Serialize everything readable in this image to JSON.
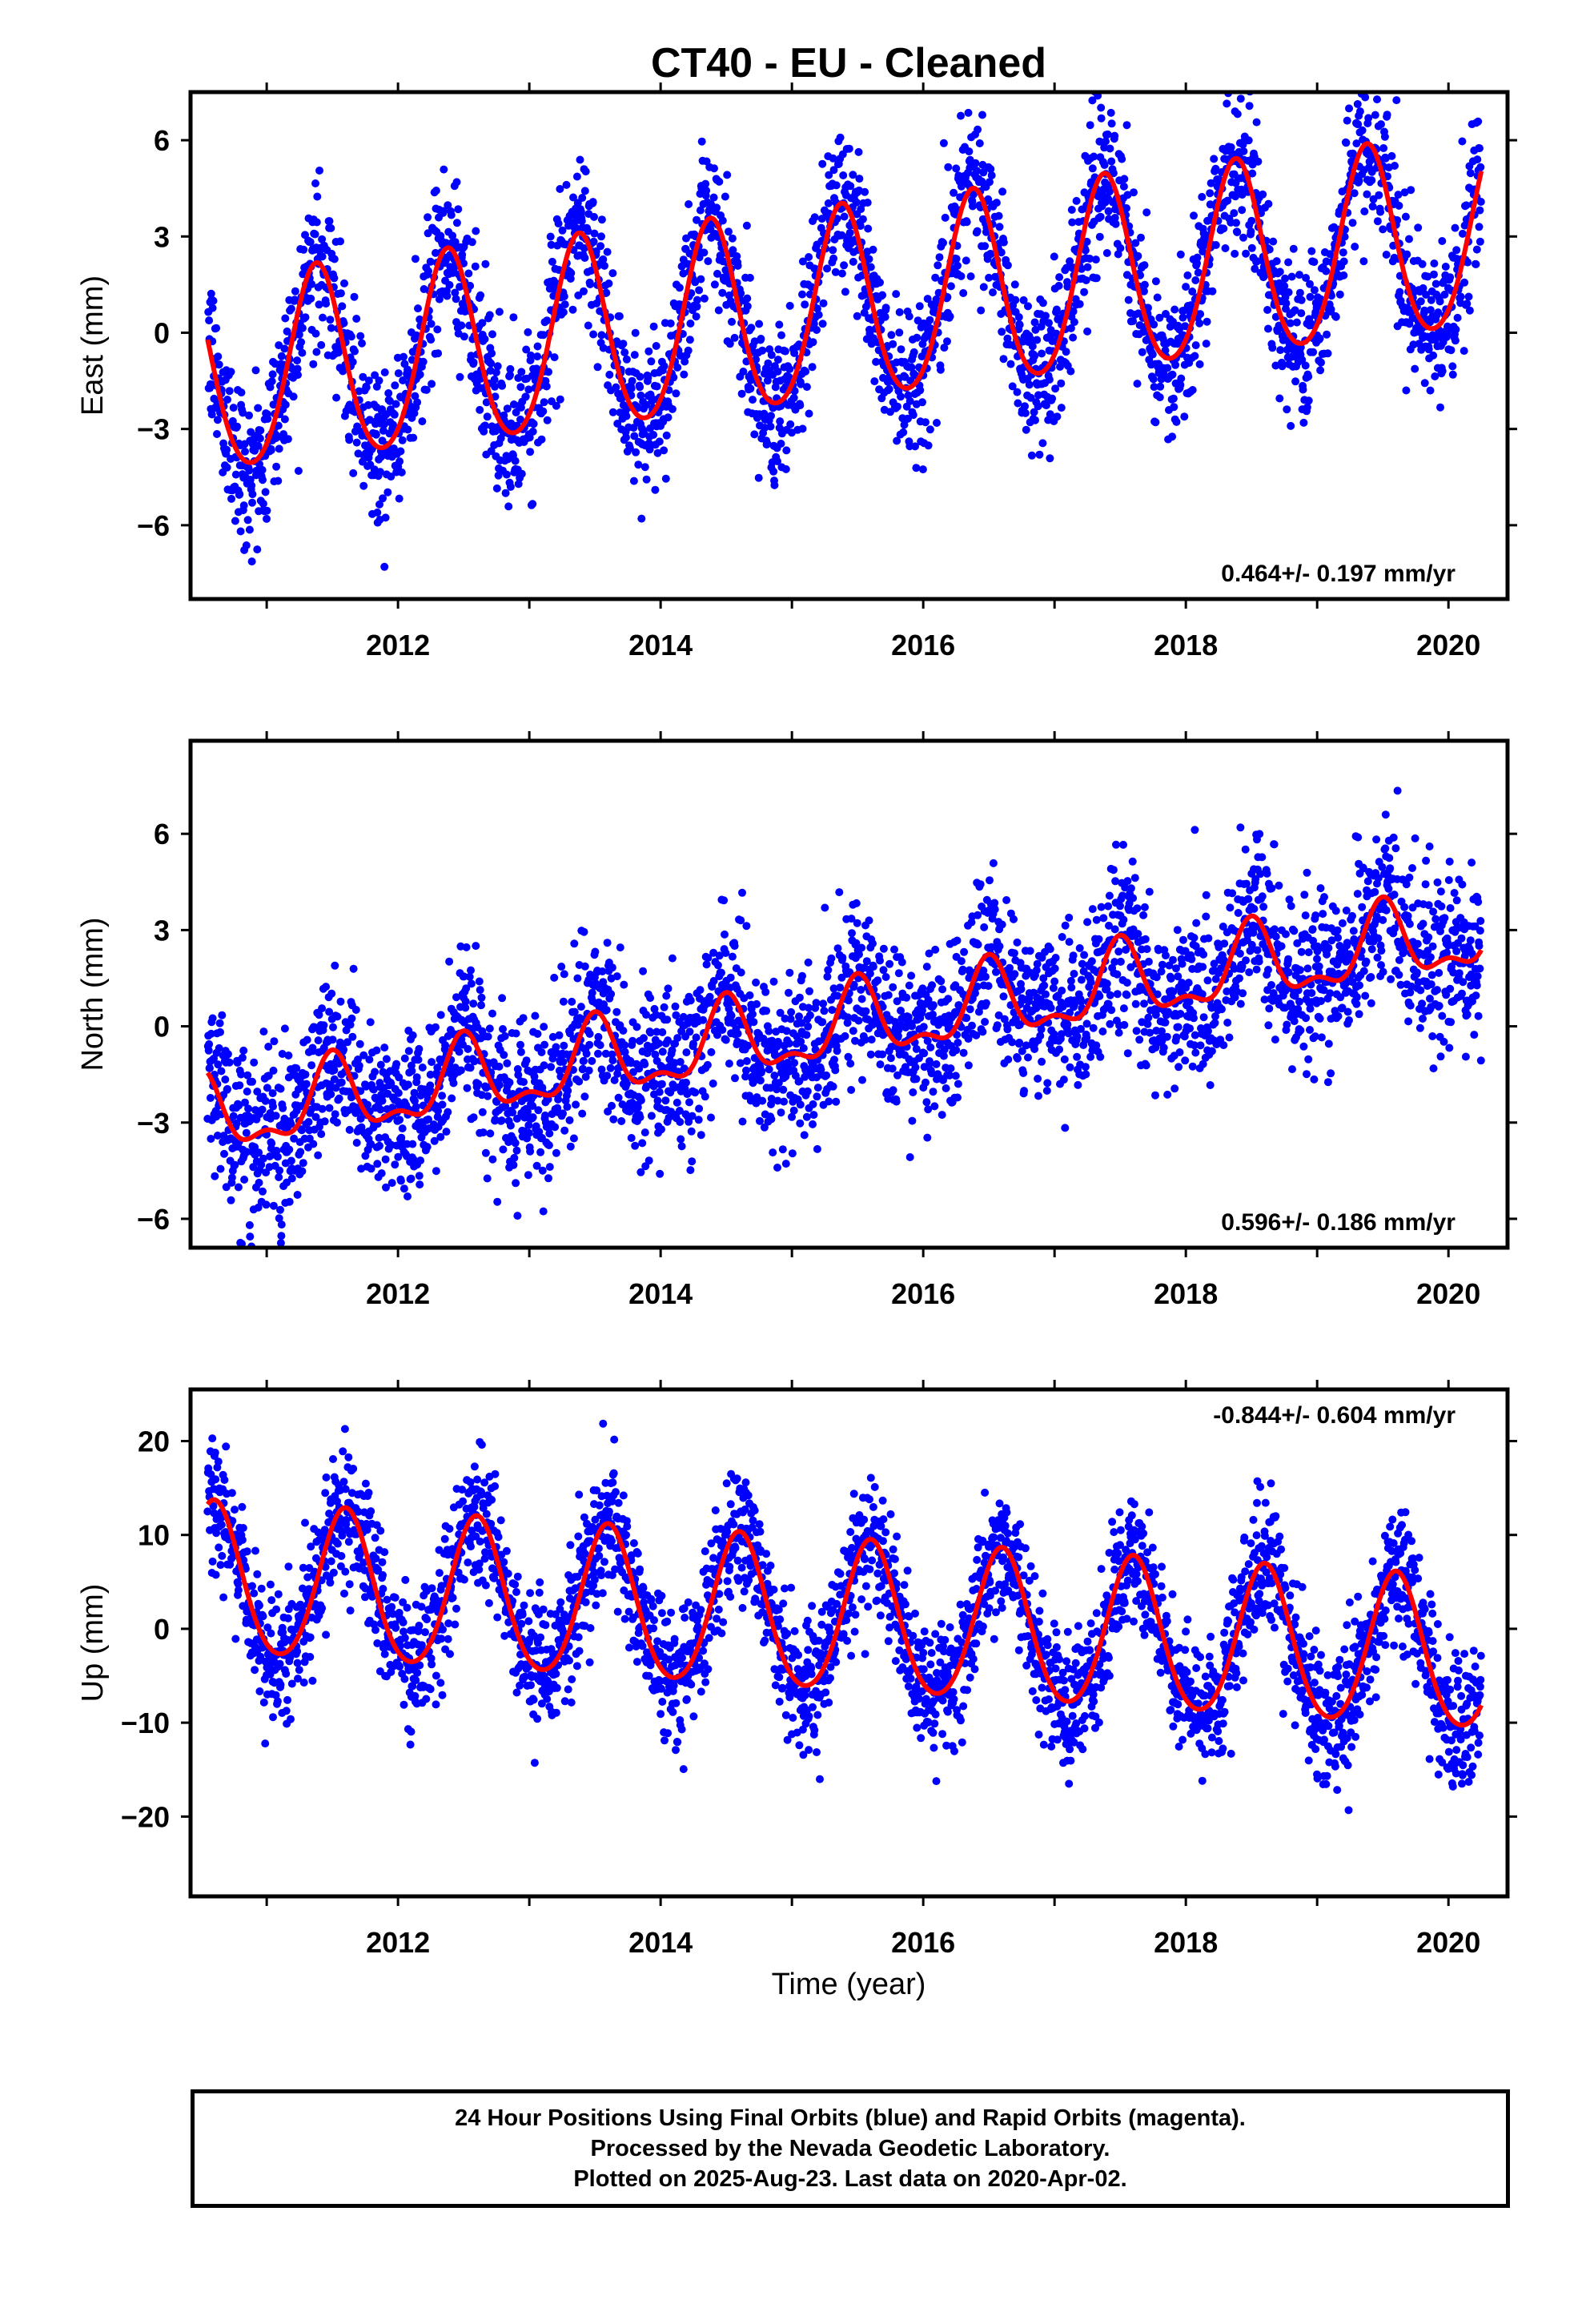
{
  "title": "CT40  - EU - Cleaned",
  "xlabel": "Time (year)",
  "caption": {
    "line1": "24 Hour Positions Using Final Orbits (blue) and Rapid Orbits (magenta).",
    "line2": "Processed by the Nevada Geodetic Laboratory.",
    "line3": "Plotted on 2025-Aug-23. Last data on 2020-Apr-02."
  },
  "colors": {
    "points": "#0000ff",
    "fit": "#ff0000",
    "frame": "#000000"
  },
  "chart_data": [
    {
      "type": "scatter",
      "component": "East",
      "ylabel": "East (mm)",
      "rate_label": "0.464+/- 0.197 mm/yr",
      "rate_position": "bottom-right",
      "xlim": [
        2010.42,
        2020.45
      ],
      "ylim": [
        -8.3,
        7.5
      ],
      "yticks": [
        -6,
        -3,
        0,
        3,
        6
      ],
      "xticks": [
        2012,
        2014,
        2016,
        2018,
        2020
      ],
      "data_start": 2010.55,
      "data_end": 2020.25,
      "fit": {
        "rate_mm_yr": 0.464,
        "offset_mm": -1.5,
        "annual_amp_mm": 3.0,
        "annual_peak_year_fraction": 0.38,
        "semiannual_amp_mm": 0.3,
        "scatter_mm": 1.2
      },
      "grid": false
    },
    {
      "type": "scatter",
      "component": "North",
      "ylabel": "North (mm)",
      "rate_label": "0.596+/- 0.186 mm/yr",
      "rate_position": "bottom-right",
      "xlim": [
        2010.42,
        2020.45
      ],
      "ylim": [
        -6.9,
        8.9
      ],
      "yticks": [
        -6,
        -3,
        0,
        3,
        6
      ],
      "xticks": [
        2012,
        2014,
        2016,
        2018,
        2020
      ],
      "data_start": 2010.55,
      "data_end": 2020.25,
      "fit": {
        "rate_mm_yr": 0.596,
        "offset_mm": -2.9,
        "annual_amp_mm": 1.1,
        "annual_peak_year_fraction": 0.5,
        "semiannual_amp_mm": 0.5,
        "scatter_mm": 1.3
      },
      "grid": false
    },
    {
      "type": "scatter",
      "component": "Up",
      "ylabel": "Up (mm)",
      "rate_label": "-0.844+/- 0.604 mm/yr",
      "rate_position": "top-right",
      "xlim": [
        2010.42,
        2020.45
      ],
      "ylim": [
        -28.5,
        25.5
      ],
      "yticks": [
        -20,
        -10,
        0,
        10,
        20
      ],
      "xticks": [
        2012,
        2014,
        2016,
        2018,
        2020
      ],
      "data_start": 2010.55,
      "data_end": 2020.25,
      "fit": {
        "rate_mm_yr": -0.844,
        "offset_mm": 5.0,
        "annual_amp_mm": 8.0,
        "annual_peak_year_fraction": 0.6,
        "semiannual_amp_mm": 0.8,
        "scatter_mm": 3.5
      },
      "grid": false
    }
  ]
}
